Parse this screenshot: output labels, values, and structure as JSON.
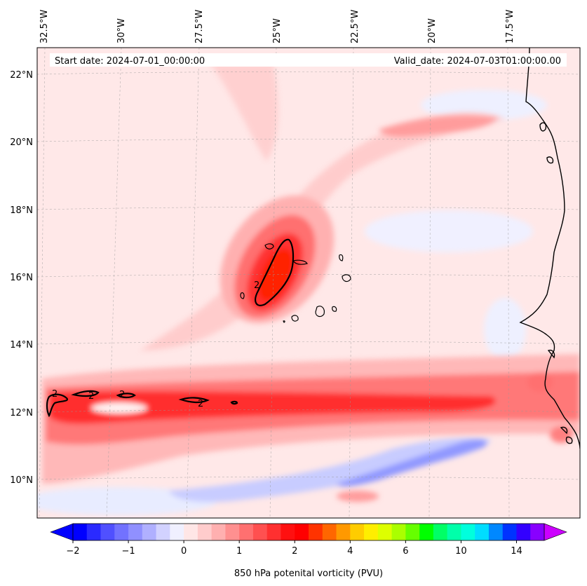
{
  "map": {
    "region": "Cape Verde / West African coast",
    "start_date": "Start date: 2024-07-01_00:00:00",
    "valid_date": "Valid_date: 2024-07-03T01:00:00.00",
    "lon_labels": [
      "32.5°W",
      "30°W",
      "27.5°W",
      "25°W",
      "22.5°W",
      "20°W",
      "17.5°W"
    ],
    "lat_labels": [
      "22°N",
      "20°N",
      "18°N",
      "16°N",
      "14°N",
      "12°N",
      "10°N"
    ],
    "contour_labels": [
      "2",
      "2",
      "2",
      "2",
      "2"
    ]
  },
  "colorbar": {
    "title": "850 hPa potenital vorticity (PVU)",
    "tick_labels": [
      "−2",
      "−1",
      "0",
      "1",
      "2",
      "4",
      "6",
      "10",
      "14"
    ],
    "colors": [
      "#0000ff",
      "#2a2aff",
      "#5050ff",
      "#7272ff",
      "#9090ff",
      "#b0b0ff",
      "#d2d2ff",
      "#f0f0ff",
      "#ffe6e6",
      "#ffcccc",
      "#ffb0b0",
      "#ff9090",
      "#ff7070",
      "#ff5050",
      "#ff3030",
      "#ff1010",
      "#ff0000",
      "#ff3300",
      "#ff6600",
      "#ff9900",
      "#ffcc00",
      "#ffee00",
      "#ddff00",
      "#aaff00",
      "#66ff00",
      "#00ff00",
      "#00ff66",
      "#00ffaa",
      "#00ffdd",
      "#00ddff",
      "#0088ff",
      "#0033ff",
      "#3300ff",
      "#8800ff"
    ],
    "extend_low_color": "#0000ff",
    "extend_high_color": "#cc00ff"
  }
}
